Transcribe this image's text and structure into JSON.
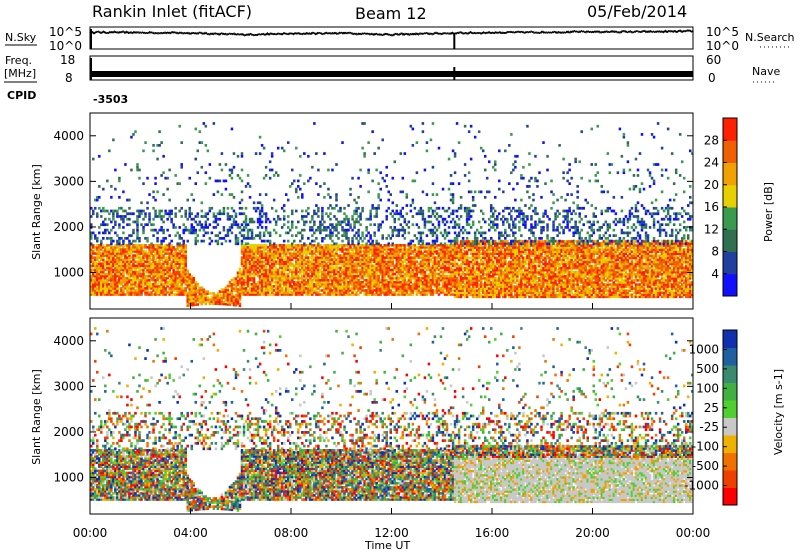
{
  "header": {
    "station": "Rankin Inlet (fitACF)",
    "beam": "Beam 12",
    "date": "05/Feb/2014"
  },
  "side_labels": {
    "nsky": "N.Sky",
    "nsearch": "N.Search",
    "freq": "Freq.",
    "mhz": "[MHz]",
    "nave": "Nave",
    "cpid": "CPID",
    "cpid_value": "-3503"
  },
  "chart_data": [
    {
      "type": "line",
      "panel": "noise",
      "ylabel_left": "N.Sky",
      "ylabel_right": "N.Search",
      "y_ticks_left": [
        "10^5",
        "10^0"
      ],
      "y_ticks_right": [
        "10^5",
        "10^0"
      ],
      "series": [
        {
          "name": "N.Sky",
          "x": [
            0,
            2,
            4,
            6,
            8,
            10,
            12,
            14,
            16,
            18,
            20,
            22,
            24
          ],
          "values": [
            4.2,
            4.1,
            4.0,
            3.6,
            3.8,
            4.0,
            3.6,
            3.9,
            4.1,
            4.2,
            4.3,
            4.3,
            4.4
          ]
        }
      ]
    },
    {
      "type": "line",
      "panel": "frequency",
      "ylabel_left": "Freq. [MHz]",
      "ylabel_right": "Nave",
      "y_ticks_left": [
        "18",
        "8"
      ],
      "y_ticks_right": [
        "60",
        "0"
      ],
      "series": [
        {
          "name": "Freq.",
          "x": [
            0,
            4,
            8,
            12,
            16,
            20,
            24
          ],
          "values": [
            10.5,
            10.5,
            10.5,
            10.5,
            10.5,
            10.5,
            10.5
          ]
        }
      ]
    },
    {
      "type": "heatmap",
      "panel": "power",
      "ylabel": "Slant Range [km]",
      "y_ticks": [
        "1000",
        "2000",
        "3000",
        "4000"
      ],
      "ylim": [
        200,
        4500
      ],
      "colorbar": {
        "label": "Power [dB]",
        "ticks": [
          "4",
          "8",
          "12",
          "16",
          "20",
          "24",
          "28"
        ],
        "colors": [
          "#1010ff",
          "#2040a0",
          "#307050",
          "#3a9a50",
          "#e8d000",
          "#f0a000",
          "#f06000",
          "#ff2000"
        ]
      },
      "bands": [
        {
          "x": [
            0,
            14.5
          ],
          "range": [
            500,
            1600
          ],
          "level": "high"
        },
        {
          "x": [
            14.5,
            24
          ],
          "range": [
            450,
            1700
          ],
          "level": "high"
        },
        {
          "x": [
            0,
            24
          ],
          "range": [
            1600,
            2400
          ],
          "level": "low"
        },
        {
          "x": [
            3.8,
            6.0
          ],
          "range": [
            250,
            700
          ],
          "level": "high"
        }
      ]
    },
    {
      "type": "heatmap",
      "panel": "velocity",
      "ylabel": "Slant Range [km]",
      "y_ticks": [
        "1000",
        "2000",
        "3000",
        "4000"
      ],
      "ylim": [
        200,
        4500
      ],
      "colorbar": {
        "label": "Velocity [m s-1]",
        "ticks": [
          "1000",
          "500",
          "100",
          "25",
          "-25",
          "-100",
          "-500",
          "-1000"
        ],
        "colors": [
          "#1030b0",
          "#2060a0",
          "#3a8a70",
          "#40b040",
          "#50d030",
          "#c8c8c8",
          "#f0b000",
          "#f07000",
          "#f04000",
          "#ff0000"
        ]
      },
      "bands": [
        {
          "x": [
            0,
            14.5
          ],
          "range": [
            500,
            1900
          ],
          "level": "mixed"
        },
        {
          "x": [
            14.5,
            24
          ],
          "range": [
            500,
            1500
          ],
          "level": "grey"
        },
        {
          "x": [
            3.8,
            6.0
          ],
          "range": [
            250,
            700
          ],
          "level": "mixed"
        }
      ]
    }
  ],
  "x_axis": {
    "ticks": [
      "00:00",
      "04:00",
      "08:00",
      "12:00",
      "16:00",
      "20:00",
      "00:00"
    ],
    "label": "Time UT"
  }
}
